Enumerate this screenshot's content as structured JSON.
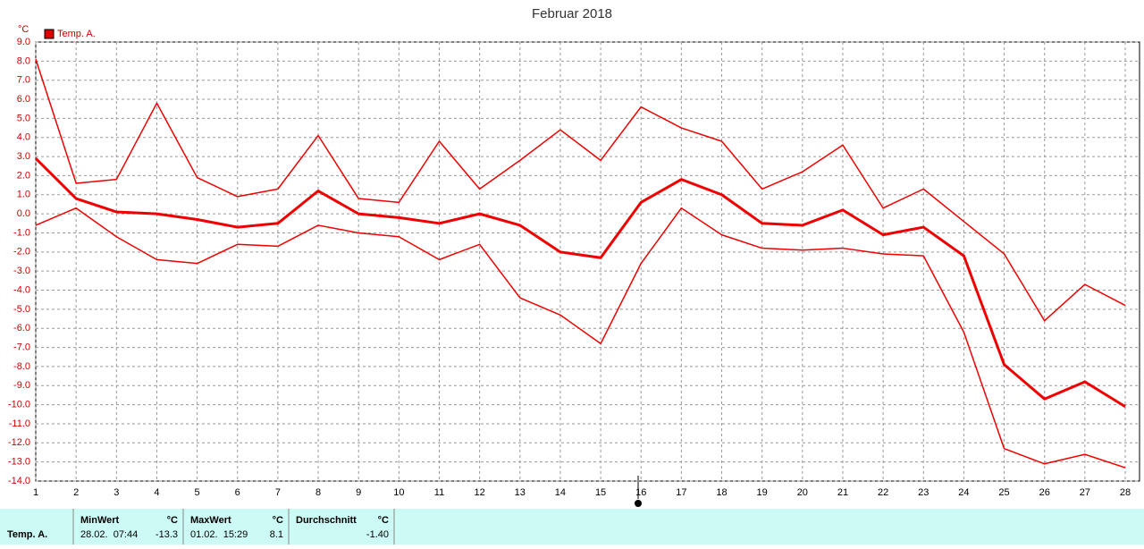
{
  "chart_data": {
    "type": "line",
    "title": "Februar 2018",
    "ylabel": "°C",
    "legend": "Temp. A.",
    "legend_color": "#dd0000",
    "x": [
      1,
      2,
      3,
      4,
      5,
      6,
      7,
      8,
      9,
      10,
      11,
      12,
      13,
      14,
      15,
      16,
      17,
      18,
      19,
      20,
      21,
      22,
      23,
      24,
      25,
      26,
      27,
      28
    ],
    "series": [
      {
        "color": "#ee0000",
        "width": 1.5,
        "values": [
          8.1,
          1.6,
          1.8,
          5.8,
          1.9,
          0.9,
          1.3,
          4.1,
          0.8,
          0.6,
          3.8,
          1.3,
          2.8,
          4.4,
          2.8,
          5.6,
          4.5,
          3.8,
          1.3,
          2.2,
          3.6,
          0.3,
          1.3,
          -0.4,
          -2.1,
          -5.6,
          -3.7,
          -4.8
        ]
      },
      {
        "color": "#ee0000",
        "width": 3,
        "values": [
          2.9,
          0.8,
          0.1,
          0.0,
          -0.3,
          -0.7,
          -0.5,
          1.2,
          0.0,
          -0.2,
          -0.5,
          0.0,
          -0.6,
          -2.0,
          -2.3,
          0.6,
          1.8,
          1.0,
          -0.5,
          -0.6,
          0.2,
          -1.1,
          -0.7,
          -2.2,
          -7.9,
          -9.7,
          -8.8,
          -10.1
        ]
      },
      {
        "color": "#ee0000",
        "width": 1.5,
        "values": [
          -0.6,
          0.3,
          -1.2,
          -2.4,
          -2.6,
          -1.6,
          -1.7,
          -0.6,
          -1.0,
          -1.2,
          -2.4,
          -1.6,
          -4.4,
          -5.3,
          -6.8,
          -2.6,
          0.3,
          -1.1,
          -1.8,
          -1.9,
          -1.8,
          -2.1,
          -2.2,
          -6.2,
          -12.3,
          -13.1,
          -12.6,
          -13.3
        ]
      }
    ],
    "xlim": [
      1,
      28
    ],
    "xticks": [
      1,
      2,
      3,
      4,
      5,
      6,
      7,
      8,
      9,
      10,
      11,
      12,
      13,
      14,
      15,
      16,
      17,
      18,
      19,
      20,
      21,
      22,
      23,
      24,
      25,
      26,
      27,
      28
    ],
    "ylim": [
      -14,
      9
    ],
    "yticks": [
      {
        "value": 9,
        "label": "9.0"
      },
      {
        "value": 8,
        "label": "8.0"
      },
      {
        "value": 7,
        "label": "7.0"
      },
      {
        "value": 6,
        "label": "6.0"
      },
      {
        "value": 5,
        "label": "5.0"
      },
      {
        "value": 4,
        "label": "4.0"
      },
      {
        "value": 3,
        "label": "3.0"
      },
      {
        "value": 2,
        "label": "2.0"
      },
      {
        "value": 1,
        "label": "1.0"
      },
      {
        "value": 0,
        "label": "0.0"
      },
      {
        "value": -1,
        "label": "-1.0"
      },
      {
        "value": -2,
        "label": "-2.0"
      },
      {
        "value": -3,
        "label": "-3.0"
      },
      {
        "value": -4,
        "label": "-4.0"
      },
      {
        "value": -5,
        "label": "-5.0"
      },
      {
        "value": -6,
        "label": "-6.0"
      },
      {
        "value": -7,
        "label": "-7.0"
      },
      {
        "value": -8,
        "label": "-8.0"
      },
      {
        "value": -9,
        "label": "-9.0"
      },
      {
        "value": -10,
        "label": "-10.0"
      },
      {
        "value": -11,
        "label": "-11.0"
      },
      {
        "value": -12,
        "label": "-12.0"
      },
      {
        "value": -13,
        "label": "-13.0"
      },
      {
        "value": -14,
        "label": "-14.0"
      }
    ],
    "grid": true
  },
  "summary": {
    "row_label": "Temp. A.",
    "columns": [
      {
        "header": "MinWert",
        "unit": "°C",
        "time": "28.02.  07:44",
        "value": "-13.3"
      },
      {
        "header": "MaxWert",
        "unit": "°C",
        "time": "01.02.  15:29",
        "value": "8.1"
      },
      {
        "header": "Durchschnitt",
        "unit": "°C",
        "value": "-1.40"
      }
    ]
  }
}
